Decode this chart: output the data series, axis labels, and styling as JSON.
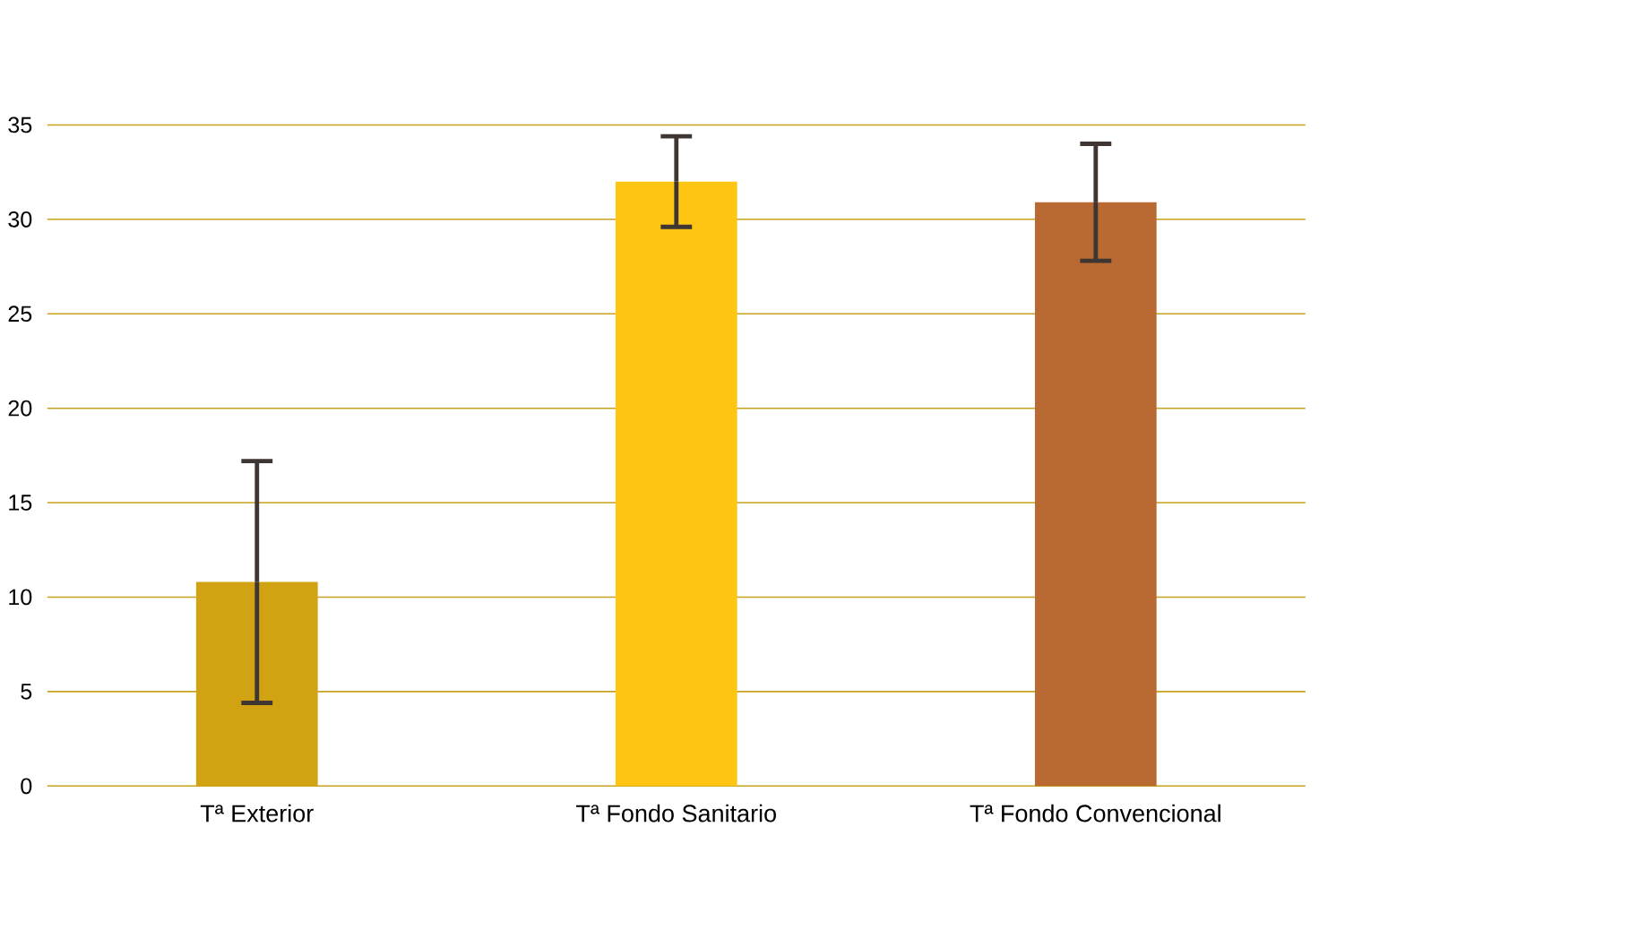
{
  "chart_data": {
    "type": "bar",
    "categories": [
      "Tª Exterior",
      "Tª Fondo Sanitario",
      "Tª Fondo Convencional"
    ],
    "values": [
      10.8,
      32.0,
      30.9
    ],
    "errors": [
      6.4,
      2.4,
      3.1
    ],
    "colors": [
      "#d1a312",
      "#fec512",
      "#b96a32"
    ],
    "ylim": [
      0,
      35
    ],
    "yticks": [
      0,
      5,
      10,
      15,
      20,
      25,
      30,
      35
    ],
    "grid": "y"
  }
}
